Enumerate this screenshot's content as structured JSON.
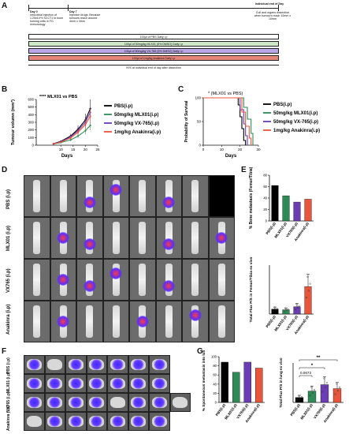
{
  "panel_letters": {
    "a": "A",
    "b": "B",
    "c": "C",
    "d": "D",
    "e": "E",
    "f": "F",
    "g": "G"
  },
  "timeline": {
    "day0": "Day 0",
    "day0_text": "Intra-tibial injection of 1.25x10^5 SCCT1 to bone homing cells in FG immunology",
    "day7": "Day 7",
    "day7_text": "Injection drugs. Because tumours reach around 4mm x 4mm",
    "endday": "Individual end of Day",
    "endday_text": "Cull and organs dissection when tumours reach 10mm x 10mm",
    "rows": [
      {
        "label": "100µl of PBS Daily i.p",
        "color": "#ffffff"
      },
      {
        "label": "100µl of 50mg/kg MLX01 (5% DMSO) Daily i.p",
        "color": "#cfe9c8"
      },
      {
        "label": "100µl of 50mg/kg VX-765 (5% DMSO) Daily i.p",
        "color": "#b9a7e8"
      },
      {
        "label": "100µl of 1mg/kg Anakinra Daily i.p",
        "color": "#e6857a"
      }
    ],
    "footer": "IVIS at individual end of day after dissection"
  },
  "panel_b": {
    "annotation": "**** MLX01 vs PBS",
    "ylabel": "Tumour volumn (mm³)",
    "xlabel": "Days",
    "legend": [
      "PBS(i.p)",
      "50mg/kg MLX01(i.p)",
      "50mg/kg VX-765(i.p)",
      "1mg/kg Anakinra(i.p)"
    ]
  },
  "panel_c": {
    "annotation": "* (MLX01 vs PBS)",
    "ylabel": "Probability of Survival",
    "xlabel": "Days",
    "legend": [
      "PBS(i.p)",
      "50mg/kg MLX01(i.p)",
      "50mg/kg VX-765(i.p)",
      "1mg/kg Anakinra(i.p)"
    ]
  },
  "panel_d": {
    "rows": [
      "PBS (i.p)",
      "MLX01 (i.p)",
      "VX765 (i.p)",
      "Anakinra (i.p)"
    ]
  },
  "panel_e_top": {
    "ylabel": "% Bone metastasis (Femur/Tibia)"
  },
  "panel_e_bottom": {
    "ylabel": "Total Flux P/S in Femur/Tibia ex vivo"
  },
  "panel_f": {
    "rows": [
      "PBS (i.p)",
      "MLX01 (i.p)",
      "VX765 (i.p)",
      "Anakinra (i.p)"
    ]
  },
  "panel_g_left": {
    "ylabel": "% Spontaneous metastasis into lung"
  },
  "panel_g_right": {
    "ylabel": "Total Flux P/S in lung ex vivo",
    "p_value": "0.0673",
    "sig1": "*",
    "sig2": "**"
  },
  "group_labels": [
    "PBS(i.p)",
    "MLX01(i.p)",
    "VX765(i.p)",
    "Anakinra(i.p)"
  ],
  "colors": {
    "pbs": "#000000",
    "mlx01": "#2e8b57",
    "vx765": "#6a3db5",
    "anakinra": "#e8553a"
  },
  "chart_data": [
    {
      "type": "line",
      "title": "",
      "xlabel": "Days",
      "ylabel": "Tumour volumn (mm³)",
      "xlim": [
        0,
        25
      ],
      "ylim": [
        0,
        600
      ],
      "xticks": [
        10,
        15,
        20,
        25
      ],
      "yticks": [
        0,
        100,
        200,
        300,
        400,
        500,
        600
      ],
      "series": [
        {
          "name": "PBS(i.p)",
          "x": [
            7,
            10,
            14,
            17,
            20,
            22
          ],
          "y": [
            20,
            50,
            120,
            210,
            330,
            480
          ]
        },
        {
          "name": "50mg/kg MLX01(i.p)",
          "x": [
            7,
            10,
            14,
            17,
            20,
            22
          ],
          "y": [
            15,
            35,
            70,
            120,
            190,
            260
          ]
        },
        {
          "name": "50mg/kg VX-765(i.p)",
          "x": [
            7,
            10,
            14,
            17,
            20,
            22
          ],
          "y": [
            20,
            45,
            110,
            190,
            300,
            430
          ]
        },
        {
          "name": "1mg/kg Anakinra(i.p)",
          "x": [
            7,
            10,
            14,
            17,
            20,
            22
          ],
          "y": [
            18,
            40,
            95,
            170,
            270,
            380
          ]
        }
      ]
    },
    {
      "type": "line",
      "title": "",
      "xlabel": "Days",
      "ylabel": "Probability of Survival",
      "xlim": [
        0,
        30
      ],
      "ylim": [
        0,
        100
      ],
      "xticks": [
        0,
        10,
        20,
        30
      ],
      "yticks": [
        0,
        50,
        100
      ],
      "series": [
        {
          "name": "PBS(i.p)",
          "x": [
            0,
            18,
            19,
            20,
            21,
            22,
            23
          ],
          "y": [
            100,
            100,
            85,
            60,
            35,
            10,
            0
          ]
        },
        {
          "name": "50mg/kg MLX01(i.p)",
          "x": [
            0,
            20,
            22,
            24,
            26,
            27
          ],
          "y": [
            100,
            100,
            80,
            55,
            25,
            0
          ]
        },
        {
          "name": "50mg/kg VX-765(i.p)",
          "x": [
            0,
            18,
            20,
            22,
            23,
            24
          ],
          "y": [
            100,
            100,
            75,
            45,
            20,
            0
          ]
        },
        {
          "name": "1mg/kg Anakinra(i.p)",
          "x": [
            0,
            19,
            21,
            23,
            25,
            26
          ],
          "y": [
            100,
            100,
            70,
            40,
            15,
            0
          ]
        }
      ]
    },
    {
      "type": "bar",
      "ylabel": "% Bone metastasis (Femur/Tibia)",
      "categories": [
        "PBS(i.p)",
        "MLX01(i.p)",
        "VX765(i.p)",
        "Anakinra(i.p)"
      ],
      "values": [
        62,
        44,
        33,
        38
      ],
      "ylim": [
        0,
        80
      ],
      "yticks": [
        0,
        20,
        40,
        60,
        80
      ]
    },
    {
      "type": "bar",
      "ylabel": "Total Flux P/S in Femur/Tibia ex vivo",
      "categories": [
        "PBS(i.p)",
        "MLX01(i.p)",
        "VX765(i.p)",
        "Anakinra(i.p)"
      ],
      "values": [
        0.8,
        0.7,
        1.2,
        4.5
      ],
      "ylim": [
        0,
        8
      ]
    },
    {
      "type": "bar",
      "ylabel": "% Spontaneous metastasis into lung",
      "categories": [
        "PBS(i.p)",
        "MLX01(i.p)",
        "VX765(i.p)",
        "Anakinra(i.p)"
      ],
      "values": [
        88,
        66,
        88,
        75
      ],
      "ylim": [
        0,
        100
      ],
      "yticks": [
        0,
        20,
        40,
        60,
        80,
        100
      ]
    },
    {
      "type": "bar",
      "ylabel": "Total Flux P/S in lung ex vivo",
      "categories": [
        "PBS(i.p)",
        "MLX01(i.p)",
        "VX765(i.p)",
        "Anakinra(i.p)"
      ],
      "values": [
        1.0,
        2.3,
        3.6,
        2.8
      ],
      "ylim": [
        0,
        8
      ]
    }
  ]
}
